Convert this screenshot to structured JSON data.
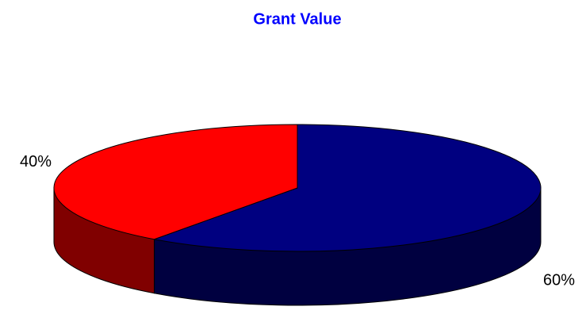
{
  "chart_data": {
    "type": "pie",
    "title": "Grant Value",
    "values": [
      60,
      40
    ],
    "value_labels": [
      "60%",
      "40%"
    ],
    "colors": [
      "#000080",
      "#ff0000"
    ],
    "side_colors": [
      "#000040",
      "#800000"
    ],
    "title_color": "#0000ff"
  }
}
